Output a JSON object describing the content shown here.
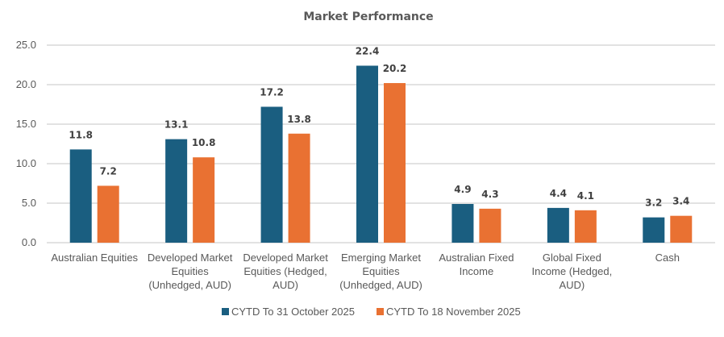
{
  "chart_data": {
    "type": "bar",
    "title": "Market Performance",
    "xlabel": "",
    "ylabel": "",
    "ylim": [
      0,
      25
    ],
    "yticks": [
      "0.0",
      "5.0",
      "10.0",
      "15.0",
      "20.0",
      "25.0"
    ],
    "ytick_values": [
      0,
      5,
      10,
      15,
      20,
      25
    ],
    "grid": true,
    "legend_position": "bottom",
    "categories": [
      [
        "Australian Equities"
      ],
      [
        "Developed Market",
        "Equities",
        "(Unhedged, AUD)"
      ],
      [
        "Developed Market",
        "Equities (Hedged,",
        "AUD)"
      ],
      [
        "Emerging Market",
        "Equities",
        "(Unhedged, AUD)"
      ],
      [
        "Australian Fixed",
        "Income"
      ],
      [
        "Global Fixed",
        "Income (Hedged,",
        "AUD)"
      ],
      [
        "Cash"
      ]
    ],
    "series": [
      {
        "name": "CYTD To 31 October 2025",
        "color": "#1a5e80",
        "values": [
          11.8,
          13.1,
          17.2,
          22.4,
          4.9,
          4.4,
          3.2
        ]
      },
      {
        "name": "CYTD To 18 November 2025",
        "color": "#e97132",
        "values": [
          7.2,
          10.8,
          13.8,
          20.2,
          4.3,
          4.1,
          3.4
        ]
      }
    ]
  }
}
